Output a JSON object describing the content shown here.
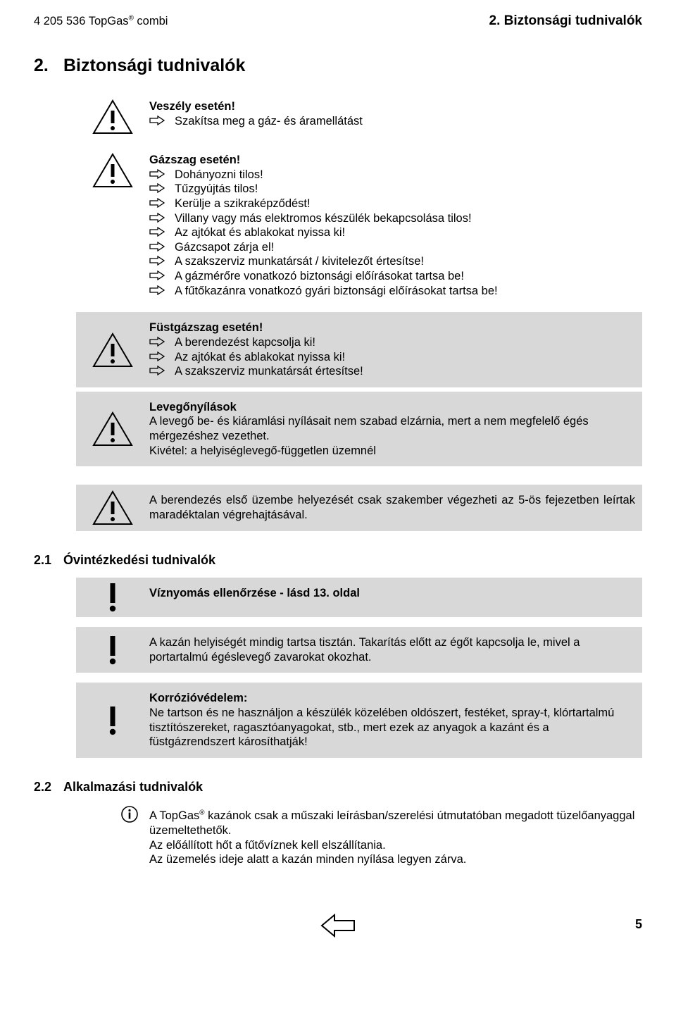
{
  "header": {
    "left_prefix": "4 205 536  TopGas",
    "left_suffix": " combi",
    "reg": "®",
    "right": "2. Biztonsági tudnivalók"
  },
  "section_title": {
    "num": "2.",
    "text": "Biztonsági tudnivalók"
  },
  "box1": {
    "title": "Veszély esetén!",
    "items": [
      "Szakítsa meg a gáz- és áramellátást"
    ]
  },
  "box2": {
    "title": "Gázszag esetén!",
    "items": [
      "Dohányozni tilos!",
      "Tűzgyújtás tilos!",
      "Kerülje a szikraképződést!",
      "Villany vagy más elektromos készülék bekapcsolása tilos!",
      "Az ajtókat és ablakokat nyissa ki!",
      "Gázcsapot zárja el!",
      "A szakszerviz munkatársát / kivitelezőt értesítse!",
      "A gázmérőre vonatkozó biztonsági előírásokat tartsa be!",
      "A fűtőkazánra vonatkozó gyári biztonsági előírásokat tartsa be!"
    ]
  },
  "box3": {
    "title": "Füstgázszag esetén!",
    "items": [
      "A berendezést kapcsolja ki!",
      "Az ajtókat és ablakokat nyissa ki!",
      "A szakszerviz munkatársát értesítse!"
    ]
  },
  "box4": {
    "title": "Levegőnyílások",
    "body1": "A levegő be- és kiáramlási nyílásait nem szabad elzárnia, mert a nem megfelelő égés mérgezéshez vezethet.",
    "body2": "Kivétel: a helyiséglevegő-független üzemnél"
  },
  "box5": {
    "body": "A berendezés első üzembe helyezését csak szakember végezheti az 5-ös fejezetben leírtak maradéktalan végrehajtásával."
  },
  "sub1": {
    "num": "2.1",
    "text": "Óvintézkedési tudnivalók"
  },
  "p1": {
    "body": "Víznyomás ellenőrzése - lásd 13. oldal"
  },
  "p2": {
    "body": "A kazán helyiségét mindig tartsa tisztán. Takarítás előtt az égőt kapcsolja le, mivel a portartalmú égéslevegő zavarokat okozhat."
  },
  "p3": {
    "title": "Korrózióvédelem:",
    "body": "Ne tartson és ne használjon a készülék közelében oldószert, festéket, spray-t, klórtartalmú tisztítószereket, ragasztóanyagokat, stb., mert ezek az anyagok a kazánt és a füstgázrendszert károsíthatják!"
  },
  "sub2": {
    "num": "2.2",
    "text": "Alkalmazási tudnivalók"
  },
  "info": {
    "line1a": "A TopGas",
    "line1b": " kazánok csak a műszaki leírásban/szerelési útmutatóban megadott tüzelőanyaggal üzemeltethetők.",
    "reg": "®",
    "line2": "Az előállított hőt a fűtővíznek kell elszállítania.",
    "line3": "Az üzemelés ideje alatt a kazán minden nyílása legyen zárva."
  },
  "page_number": "5",
  "colors": {
    "grey": "#d8d8d8",
    "black": "#000000"
  }
}
